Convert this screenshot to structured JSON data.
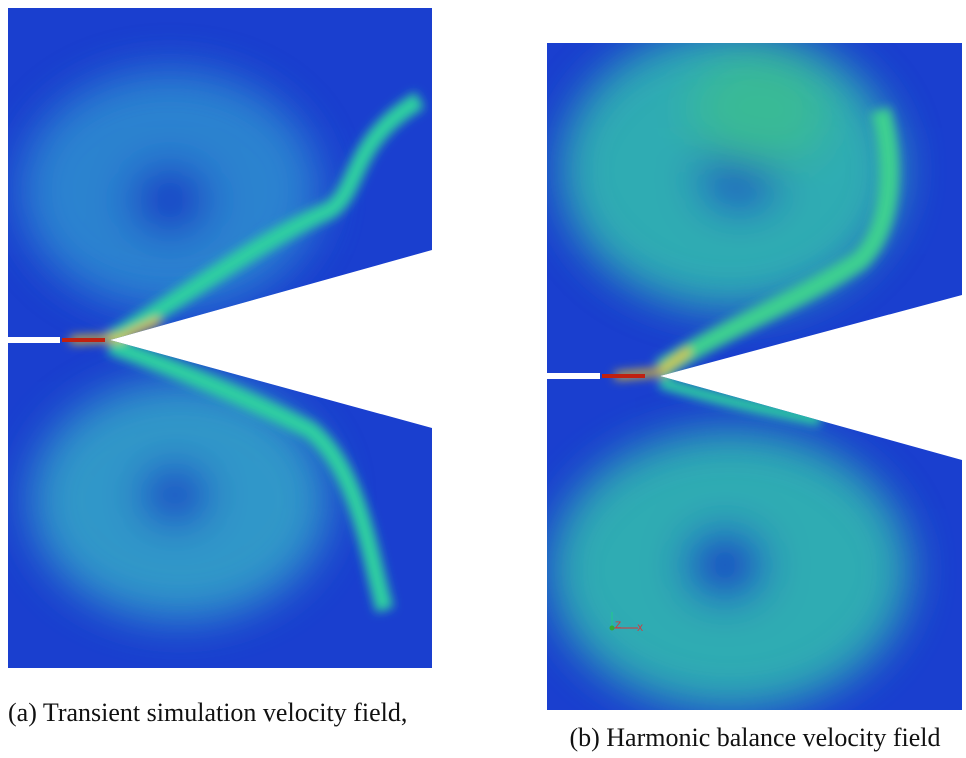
{
  "figure": {
    "panels": [
      {
        "caption": "(a) Transient simulation velocity field,"
      },
      {
        "caption": "(b) Harmonic balance velocity field",
        "axis_labels": [
          "Z",
          "X"
        ]
      }
    ]
  }
}
